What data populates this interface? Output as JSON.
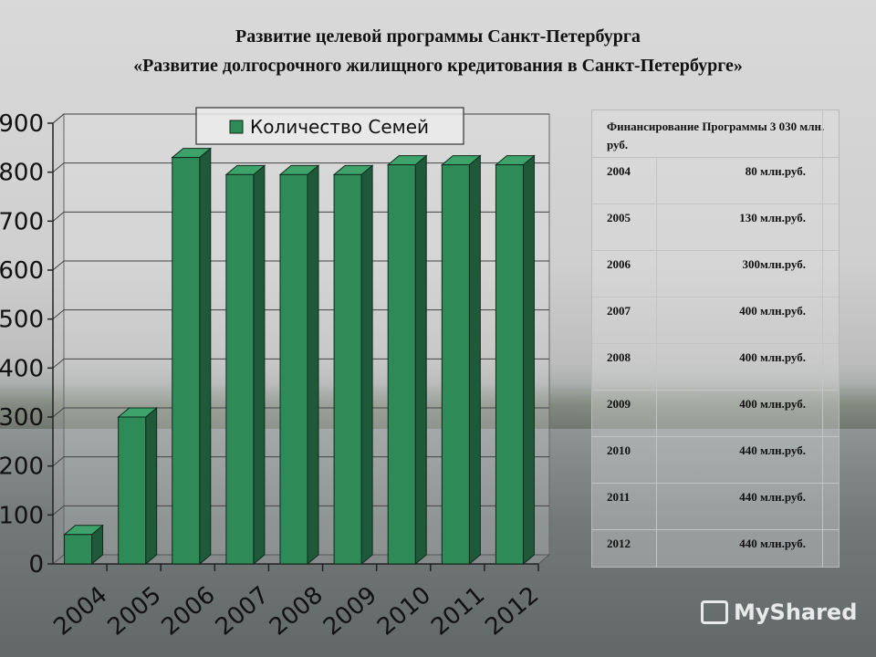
{
  "title": {
    "line1": "Развитие целевой программы Санкт-Петербурга",
    "line2": "«Развитие долгосрочного жилищного кредитования в Санкт-Петербурге»"
  },
  "chart_data": {
    "type": "bar",
    "categories": [
      "2004",
      "2005",
      "2006",
      "2007",
      "2008",
      "2009",
      "2010",
      "2011",
      "2012"
    ],
    "series": [
      {
        "name": "Количество Семей",
        "values": [
          60,
          300,
          830,
          795,
          795,
          795,
          815,
          815,
          815
        ]
      }
    ],
    "yticks": [
      "0",
      "100",
      "200",
      "300",
      "400",
      "500",
      "600",
      "700",
      "800",
      "900"
    ],
    "ylim": [
      0,
      900
    ],
    "grid": true,
    "legend": "top-center",
    "bar_color": "#2e8b57",
    "bar_dark": "#1e5a3a",
    "bar_top": "#3ea36a"
  },
  "funding": {
    "header": "Финансирование Программы 3 030 млн. руб.",
    "rows": [
      {
        "year": "2004",
        "amount": "80 млн.руб."
      },
      {
        "year": "2005",
        "amount": "130 млн.руб."
      },
      {
        "year": "2006",
        "amount": "300млн.руб."
      },
      {
        "year": "2007",
        "amount": "400 млн.руб."
      },
      {
        "year": "2008",
        "amount": "400 млн.руб."
      },
      {
        "year": "2009",
        "amount": "400 млн.руб."
      },
      {
        "year": "2010",
        "amount": "440 млн.руб."
      },
      {
        "year": "2011",
        "amount": "440 млн.руб."
      },
      {
        "year": "2012",
        "amount": "440 млн.руб."
      }
    ]
  },
  "watermark": "MyShared"
}
